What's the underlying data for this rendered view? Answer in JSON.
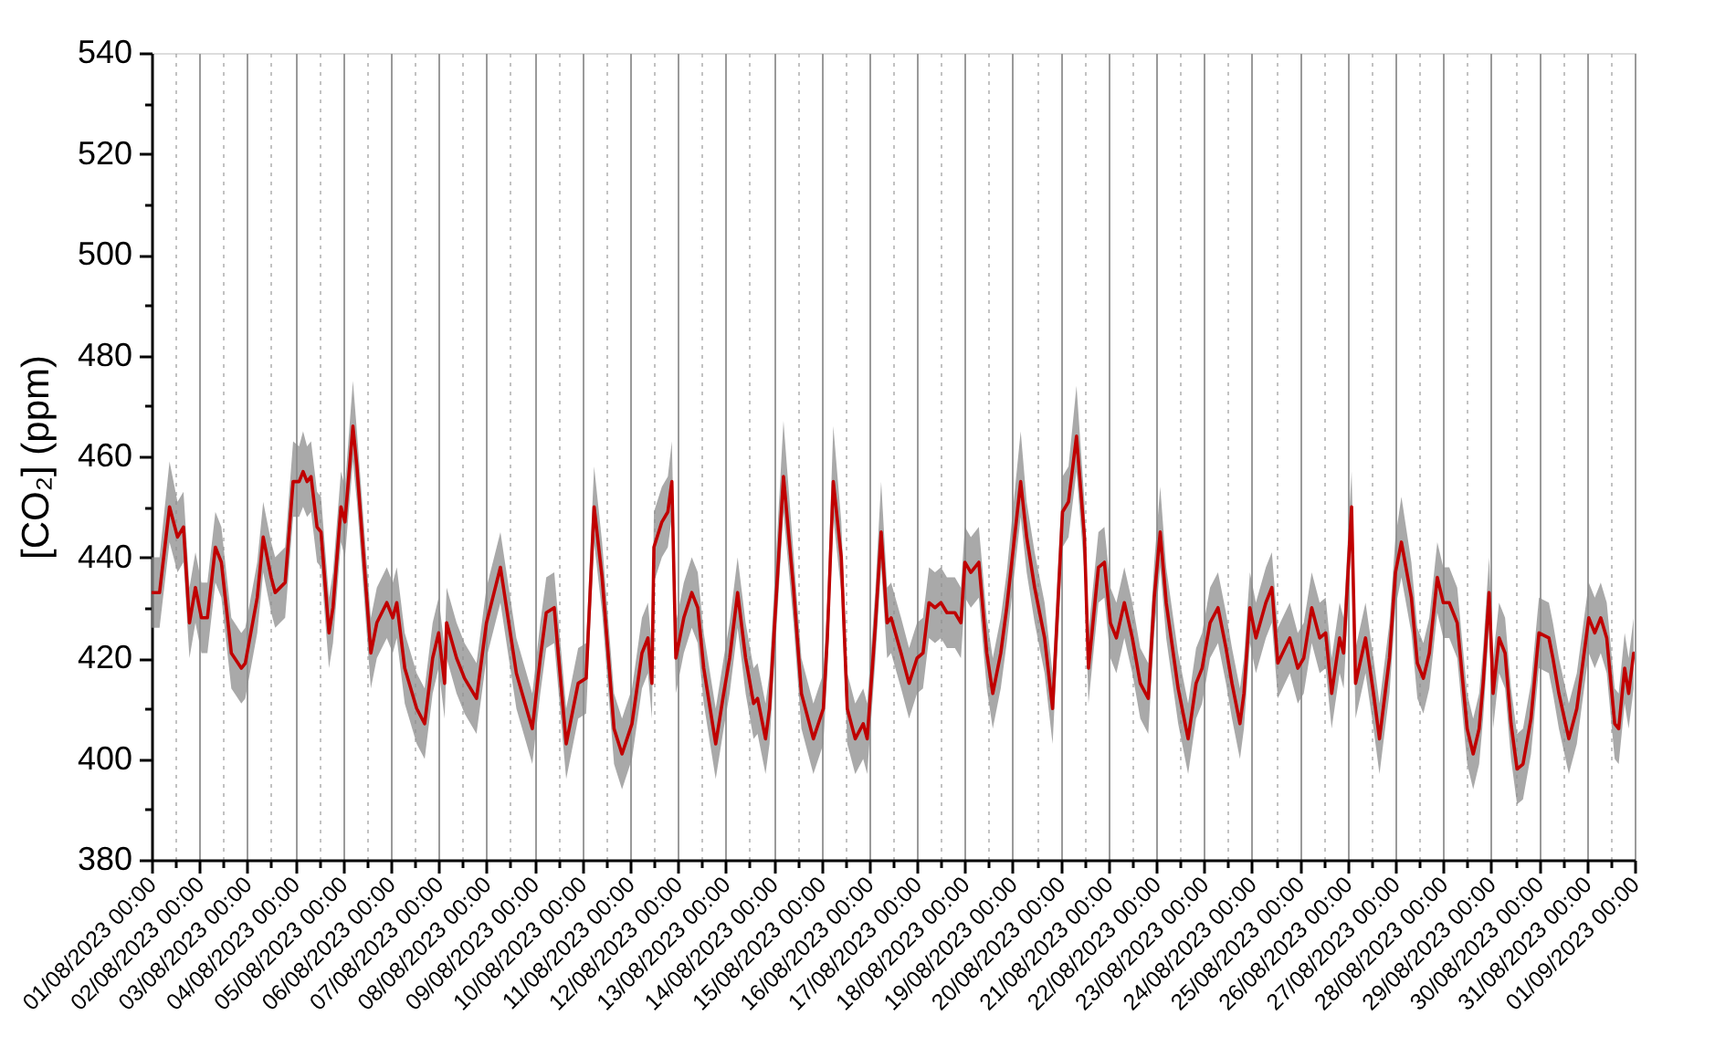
{
  "chart_data": {
    "type": "line",
    "ylabel": "[CO₂] (ppm)",
    "x": [
      "2023-08-01T00:00",
      "2023-08-01T04:00",
      "2023-08-01T09:00",
      "2023-08-01T13:00",
      "2023-08-01T16:00",
      "2023-08-01T19:00",
      "2023-08-01T22:00",
      "2023-08-02T01:00",
      "2023-08-02T04:00",
      "2023-08-02T08:00",
      "2023-08-02T11:00",
      "2023-08-02T16:00",
      "2023-08-02T21:00",
      "2023-08-02T23:00",
      "2023-08-03T05:00",
      "2023-08-03T08:00",
      "2023-08-03T12:00",
      "2023-08-03T14:00",
      "2023-08-03T19:00",
      "2023-08-03T23:00",
      "2023-08-04T02:00",
      "2023-08-04T04:00",
      "2023-08-04T06:00",
      "2023-08-04T08:00",
      "2023-08-04T11:00",
      "2023-08-04T13:00",
      "2023-08-04T17:00",
      "2023-08-04T19:00",
      "2023-08-04T23:00",
      "2023-08-05T01:00",
      "2023-08-05T05:00",
      "2023-08-05T07:00",
      "2023-08-05T14:00",
      "2023-08-05T17:00",
      "2023-08-05T22:00",
      "2023-08-06T01:00",
      "2023-08-06T03:00",
      "2023-08-06T07:00",
      "2023-08-06T13:00",
      "2023-08-06T17:00",
      "2023-08-06T21:00",
      "2023-08-07T00:00",
      "2023-08-07T03:00",
      "2023-08-07T04:00",
      "2023-08-07T09:00",
      "2023-08-07T13:00",
      "2023-08-07T19:00",
      "2023-08-08T00:00",
      "2023-08-08T07:00",
      "2023-08-08T15:00",
      "2023-08-08T23:00",
      "2023-08-09T03:00",
      "2023-08-09T06:00",
      "2023-08-09T10:00",
      "2023-08-09T16:00",
      "2023-08-09T22:00",
      "2023-08-10T02:00",
      "2023-08-10T06:00",
      "2023-08-10T10:00",
      "2023-08-10T16:00",
      "2023-08-10T20:00",
      "2023-08-11T01:00",
      "2023-08-11T06:00",
      "2023-08-11T09:00",
      "2023-08-11T11:00",
      "2023-08-11T12:00",
      "2023-08-11T16:00",
      "2023-08-11T19:00",
      "2023-08-11T21:00",
      "2023-08-11T23:00",
      "2023-08-12T03:00",
      "2023-08-12T07:00",
      "2023-08-12T10:00",
      "2023-08-12T13:00",
      "2023-08-12T19:00",
      "2023-08-12T23:00",
      "2023-08-13T02:00",
      "2023-08-13T06:00",
      "2023-08-13T10:00",
      "2023-08-13T14:00",
      "2023-08-13T16:00",
      "2023-08-13T20:00",
      "2023-08-13T22:00",
      "2023-08-14T05:00",
      "2023-08-14T10:00",
      "2023-08-14T14:00",
      "2023-08-14T20:00",
      "2023-08-15T01:00",
      "2023-08-15T03:00",
      "2023-08-15T06:00",
      "2023-08-15T10:00",
      "2023-08-15T13:00",
      "2023-08-15T17:00",
      "2023-08-15T21:00",
      "2023-08-15T23:00",
      "2023-08-16T03:00",
      "2023-08-16T06:00",
      "2023-08-16T09:00",
      "2023-08-16T11:00",
      "2023-08-16T16:00",
      "2023-08-16T20:00",
      "2023-08-17T00:00",
      "2023-08-17T03:00",
      "2023-08-17T06:00",
      "2023-08-17T09:00",
      "2023-08-17T12:00",
      "2023-08-17T15:00",
      "2023-08-17T19:00",
      "2023-08-17T22:00",
      "2023-08-18T00:00",
      "2023-08-18T03:00",
      "2023-08-18T07:00",
      "2023-08-18T11:00",
      "2023-08-18T14:00",
      "2023-08-18T18:00",
      "2023-08-18T21:00",
      "2023-08-19T04:00",
      "2023-08-19T07:00",
      "2023-08-19T11:00",
      "2023-08-19T16:00",
      "2023-08-19T20:00",
      "2023-08-20T01:00",
      "2023-08-20T04:00",
      "2023-08-20T08:00",
      "2023-08-20T12:00",
      "2023-08-20T14:00",
      "2023-08-20T19:00",
      "2023-08-20T22:00",
      "2023-08-21T01:00",
      "2023-08-21T04:00",
      "2023-08-21T08:00",
      "2023-08-21T12:00",
      "2023-08-21T16:00",
      "2023-08-21T20:00",
      "2023-08-21T23:00",
      "2023-08-22T02:00",
      "2023-08-22T05:00",
      "2023-08-22T11:00",
      "2023-08-22T16:00",
      "2023-08-22T20:00",
      "2023-08-22T23:00",
      "2023-08-23T03:00",
      "2023-08-23T07:00",
      "2023-08-23T11:00",
      "2023-08-23T14:00",
      "2023-08-23T18:00",
      "2023-08-23T20:00",
      "2023-08-23T23:00",
      "2023-08-24T02:00",
      "2023-08-24T07:00",
      "2023-08-24T10:00",
      "2023-08-24T13:00",
      "2023-08-24T19:00",
      "2023-08-24T23:00",
      "2023-08-25T02:00",
      "2023-08-25T06:00",
      "2023-08-25T10:00",
      "2023-08-25T13:00",
      "2023-08-25T16:00",
      "2023-08-25T20:00",
      "2023-08-25T22:00",
      "2023-08-26T02:00",
      "2023-08-26T04:00",
      "2023-08-26T09:00",
      "2023-08-26T13:00",
      "2023-08-26T16:00",
      "2023-08-26T21:00",
      "2023-08-27T00:00",
      "2023-08-27T03:00",
      "2023-08-27T08:00",
      "2023-08-27T11:00",
      "2023-08-27T14:00",
      "2023-08-27T17:00",
      "2023-08-27T21:00",
      "2023-08-28T00:00",
      "2023-08-28T03:00",
      "2023-08-28T07:00",
      "2023-08-28T12:00",
      "2023-08-28T15:00",
      "2023-08-28T18:00",
      "2023-08-28T20:00",
      "2023-08-28T23:00",
      "2023-08-29T01:00",
      "2023-08-29T04:00",
      "2023-08-29T07:00",
      "2023-08-29T10:00",
      "2023-08-29T13:00",
      "2023-08-29T16:00",
      "2023-08-29T20:00",
      "2023-08-30T00:00",
      "2023-08-30T05:00",
      "2023-08-30T07:00",
      "2023-08-30T10:00",
      "2023-08-30T15:00",
      "2023-08-30T19:00",
      "2023-08-30T22:00",
      "2023-08-31T01:00",
      "2023-08-31T04:00",
      "2023-08-31T07:00",
      "2023-08-31T10:00",
      "2023-08-31T14:00",
      "2023-08-31T16:00",
      "2023-08-31T19:00",
      "2023-08-31T21:00",
      "2023-08-31T23:30"
    ],
    "series": [
      {
        "color": "#c00000",
        "values": [
          433,
          433,
          450,
          444,
          446,
          427,
          434,
          428,
          428,
          442,
          439,
          421,
          418,
          419,
          432,
          444,
          436,
          433,
          435,
          455,
          455,
          457,
          455,
          456,
          446,
          445,
          425,
          430,
          450,
          447,
          466,
          458,
          421,
          427,
          431,
          428,
          431,
          418,
          410,
          407,
          420,
          425,
          415,
          427,
          420,
          416,
          412,
          427,
          438,
          417,
          406,
          420,
          429,
          430,
          403,
          415,
          416,
          450,
          436,
          406,
          401,
          407,
          421,
          424,
          415,
          442,
          447,
          449,
          455,
          420,
          428,
          433,
          430,
          418,
          403,
          413,
          420,
          433,
          420,
          411,
          412,
          404,
          410,
          456,
          434,
          413,
          404,
          410,
          424,
          455,
          440,
          410,
          404,
          407,
          404,
          426,
          445,
          427,
          428,
          421,
          415,
          420,
          421,
          431,
          430,
          431,
          429,
          429,
          427,
          439,
          437,
          439,
          421,
          413,
          421,
          430,
          455,
          444,
          434,
          424,
          410,
          449,
          451,
          464,
          444,
          418,
          438,
          439,
          427,
          424,
          431,
          424,
          415,
          412,
          432,
          445,
          431,
          414,
          404,
          415,
          418,
          427,
          430,
          422,
          415,
          407,
          413,
          430,
          424,
          431,
          434,
          419,
          424,
          418,
          420,
          430,
          424,
          425,
          413,
          424,
          421,
          450,
          415,
          424,
          413,
          404,
          420,
          437,
          443,
          432,
          419,
          416,
          421,
          436,
          431,
          431,
          427,
          406,
          401,
          406,
          415,
          433,
          413,
          424,
          421,
          407,
          398,
          399,
          408,
          425,
          424,
          420,
          413,
          404,
          410,
          419,
          428,
          425,
          428,
          424,
          407,
          406,
          418,
          413,
          421
        ],
        "lower": [
          426,
          426,
          443,
          437,
          439,
          420,
          427,
          421,
          421,
          435,
          432,
          414,
          411,
          412,
          425,
          437,
          429,
          426,
          428,
          448,
          448,
          450,
          448,
          449,
          439,
          438,
          418,
          423,
          443,
          440,
          459,
          451,
          414,
          420,
          424,
          421,
          424,
          411,
          403,
          400,
          413,
          418,
          408,
          420,
          413,
          409,
          405,
          420,
          431,
          410,
          399,
          413,
          422,
          423,
          396,
          408,
          409,
          443,
          429,
          399,
          394,
          400,
          414,
          417,
          408,
          435,
          440,
          442,
          448,
          413,
          421,
          426,
          423,
          411,
          396,
          406,
          413,
          426,
          413,
          404,
          405,
          397,
          403,
          449,
          427,
          406,
          397,
          403,
          417,
          448,
          433,
          403,
          397,
          400,
          397,
          419,
          438,
          420,
          421,
          414,
          408,
          413,
          414,
          424,
          423,
          424,
          422,
          422,
          420,
          432,
          430,
          432,
          414,
          406,
          414,
          423,
          448,
          437,
          427,
          417,
          403,
          442,
          444,
          457,
          437,
          411,
          431,
          432,
          420,
          417,
          424,
          417,
          408,
          405,
          425,
          438,
          424,
          407,
          397,
          408,
          411,
          420,
          423,
          415,
          408,
          400,
          406,
          423,
          417,
          424,
          427,
          412,
          417,
          411,
          413,
          423,
          417,
          418,
          406,
          417,
          414,
          443,
          408,
          417,
          406,
          397,
          413,
          430,
          436,
          425,
          412,
          409,
          414,
          429,
          424,
          424,
          420,
          399,
          394,
          399,
          408,
          426,
          406,
          417,
          414,
          400,
          391,
          392,
          401,
          418,
          417,
          413,
          406,
          397,
          403,
          412,
          421,
          418,
          421,
          417,
          400,
          399,
          411,
          406,
          414
        ],
        "upper": [
          440,
          440,
          459,
          451,
          453,
          434,
          441,
          435,
          435,
          449,
          446,
          428,
          425,
          426,
          439,
          451,
          443,
          440,
          442,
          463,
          462,
          465,
          462,
          463,
          453,
          452,
          432,
          437,
          457,
          454,
          475,
          465,
          428,
          434,
          438,
          435,
          438,
          425,
          417,
          414,
          427,
          432,
          422,
          434,
          427,
          423,
          419,
          434,
          445,
          424,
          413,
          427,
          436,
          437,
          410,
          422,
          423,
          458,
          443,
          413,
          408,
          414,
          428,
          431,
          422,
          449,
          454,
          456,
          463,
          427,
          435,
          440,
          437,
          425,
          410,
          420,
          427,
          440,
          427,
          418,
          419,
          411,
          417,
          467,
          441,
          420,
          411,
          417,
          431,
          466,
          447,
          417,
          411,
          414,
          411,
          433,
          455,
          434,
          435,
          428,
          422,
          427,
          428,
          438,
          437,
          438,
          436,
          436,
          434,
          446,
          444,
          446,
          428,
          420,
          428,
          437,
          465,
          451,
          441,
          431,
          417,
          456,
          458,
          474,
          451,
          425,
          445,
          446,
          434,
          431,
          438,
          431,
          422,
          419,
          439,
          454,
          438,
          421,
          411,
          422,
          425,
          434,
          437,
          429,
          422,
          414,
          420,
          437,
          431,
          438,
          441,
          426,
          431,
          425,
          427,
          437,
          431,
          432,
          420,
          431,
          428,
          457,
          422,
          431,
          420,
          411,
          427,
          444,
          452,
          439,
          426,
          423,
          428,
          443,
          438,
          438,
          434,
          413,
          408,
          413,
          422,
          440,
          420,
          431,
          428,
          414,
          405,
          406,
          415,
          432,
          431,
          427,
          420,
          411,
          417,
          426,
          435,
          432,
          435,
          431,
          414,
          413,
          425,
          420,
          428
        ]
      }
    ],
    "xlim": [
      "2023-08-01T00:00",
      "2023-09-01T00:00"
    ],
    "xticks": [
      {
        "value": "2023-08-01T00:00",
        "label": "01/08/2023 00:00"
      },
      {
        "value": "2023-08-01T12:00",
        "label": null
      },
      {
        "value": "2023-08-02T00:00",
        "label": "02/08/2023 00:00"
      },
      {
        "value": "2023-08-02T12:00",
        "label": null
      },
      {
        "value": "2023-08-03T00:00",
        "label": "03/08/2023 00:00"
      },
      {
        "value": "2023-08-03T12:00",
        "label": null
      },
      {
        "value": "2023-08-04T00:00",
        "label": "04/08/2023 00:00"
      },
      {
        "value": "2023-08-04T12:00",
        "label": null
      },
      {
        "value": "2023-08-05T00:00",
        "label": "05/08/2023 00:00"
      },
      {
        "value": "2023-08-05T12:00",
        "label": null
      },
      {
        "value": "2023-08-06T00:00",
        "label": "06/08/2023 00:00"
      },
      {
        "value": "2023-08-06T12:00",
        "label": null
      },
      {
        "value": "2023-08-07T00:00",
        "label": "07/08/2023 00:00"
      },
      {
        "value": "2023-08-07T12:00",
        "label": null
      },
      {
        "value": "2023-08-08T00:00",
        "label": "08/08/2023 00:00"
      },
      {
        "value": "2023-08-08T12:00",
        "label": null
      },
      {
        "value": "2023-08-09T00:00",
        "label": "09/08/2023 00:00"
      },
      {
        "value": "2023-08-09T12:00",
        "label": null
      },
      {
        "value": "2023-08-10T00:00",
        "label": "10/08/2023 00:00"
      },
      {
        "value": "2023-08-10T12:00",
        "label": null
      },
      {
        "value": "2023-08-11T00:00",
        "label": "11/08/2023 00:00"
      },
      {
        "value": "2023-08-11T12:00",
        "label": null
      },
      {
        "value": "2023-08-12T00:00",
        "label": "12/08/2023 00:00"
      },
      {
        "value": "2023-08-12T12:00",
        "label": null
      },
      {
        "value": "2023-08-13T00:00",
        "label": "13/08/2023 00:00"
      },
      {
        "value": "2023-08-13T12:00",
        "label": null
      },
      {
        "value": "2023-08-14T00:00",
        "label": "14/08/2023 00:00"
      },
      {
        "value": "2023-08-14T12:00",
        "label": null
      },
      {
        "value": "2023-08-15T00:00",
        "label": "15/08/2023 00:00"
      },
      {
        "value": "2023-08-15T12:00",
        "label": null
      },
      {
        "value": "2023-08-16T00:00",
        "label": "16/08/2023 00:00"
      },
      {
        "value": "2023-08-16T12:00",
        "label": null
      },
      {
        "value": "2023-08-17T00:00",
        "label": "17/08/2023 00:00"
      },
      {
        "value": "2023-08-17T12:00",
        "label": null
      },
      {
        "value": "2023-08-18T00:00",
        "label": "18/08/2023 00:00"
      },
      {
        "value": "2023-08-18T12:00",
        "label": null
      },
      {
        "value": "2023-08-19T00:00",
        "label": "19/08/2023 00:00"
      },
      {
        "value": "2023-08-19T12:00",
        "label": null
      },
      {
        "value": "2023-08-20T00:00",
        "label": "20/08/2023 00:00"
      },
      {
        "value": "2023-08-20T12:00",
        "label": null
      },
      {
        "value": "2023-08-21T00:00",
        "label": "21/08/2023 00:00"
      },
      {
        "value": "2023-08-21T12:00",
        "label": null
      },
      {
        "value": "2023-08-22T00:00",
        "label": "22/08/2023 00:00"
      },
      {
        "value": "2023-08-22T12:00",
        "label": null
      },
      {
        "value": "2023-08-23T00:00",
        "label": "23/08/2023 00:00"
      },
      {
        "value": "2023-08-23T12:00",
        "label": null
      },
      {
        "value": "2023-08-24T00:00",
        "label": "24/08/2023 00:00"
      },
      {
        "value": "2023-08-24T12:00",
        "label": null
      },
      {
        "value": "2023-08-25T00:00",
        "label": "25/08/2023 00:00"
      },
      {
        "value": "2023-08-25T12:00",
        "label": null
      },
      {
        "value": "2023-08-26T00:00",
        "label": "26/08/2023 00:00"
      },
      {
        "value": "2023-08-26T12:00",
        "label": null
      },
      {
        "value": "2023-08-27T00:00",
        "label": "27/08/2023 00:00"
      },
      {
        "value": "2023-08-27T12:00",
        "label": null
      },
      {
        "value": "2023-08-28T00:00",
        "label": "28/08/2023 00:00"
      },
      {
        "value": "2023-08-28T12:00",
        "label": null
      },
      {
        "value": "2023-08-29T00:00",
        "label": "29/08/2023 00:00"
      },
      {
        "value": "2023-08-29T12:00",
        "label": null
      },
      {
        "value": "2023-08-30T00:00",
        "label": "30/08/2023 00:00"
      },
      {
        "value": "2023-08-30T12:00",
        "label": null
      },
      {
        "value": "2023-08-31T00:00",
        "label": "31/08/2023 00:00"
      },
      {
        "value": "2023-08-31T12:00",
        "label": null
      },
      {
        "value": "2023-09-01T00:00",
        "label": "01/09/2023 00:00"
      }
    ],
    "ylim": [
      380,
      540
    ],
    "yticks": [
      380,
      {
        "value": 390,
        "label": null
      },
      400,
      {
        "value": 410,
        "label": null
      },
      420,
      {
        "value": 430,
        "label": null
      },
      440,
      {
        "value": 450,
        "label": null
      },
      460,
      {
        "value": 470,
        "label": null
      },
      480,
      {
        "value": 490,
        "label": null
      },
      500,
      {
        "value": 510,
        "label": null
      },
      520,
      {
        "value": 530,
        "label": null
      },
      540
    ],
    "grid": "x"
  }
}
